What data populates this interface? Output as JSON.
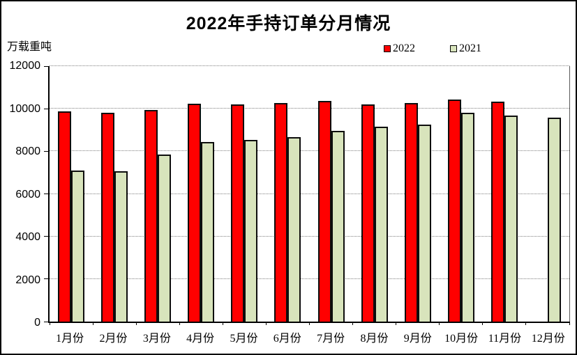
{
  "header": {
    "title": "2022年手持订单分月情况"
  },
  "axes": {
    "unit_label": "万载重吨",
    "yticks": [
      0,
      2000,
      4000,
      6000,
      8000,
      10000,
      12000
    ]
  },
  "legend": {
    "items": [
      {
        "label": "2022",
        "color": "#ff0000"
      },
      {
        "label": "2021",
        "color": "#d8e4bc"
      }
    ]
  },
  "chart_data": {
    "type": "bar",
    "title": "2022年手持订单分月情况",
    "ylabel": "万载重吨",
    "xlabel": "",
    "categories": [
      "1月份",
      "2月份",
      "3月份",
      "4月份",
      "5月份",
      "6月份",
      "7月份",
      "8月份",
      "9月份",
      "10月份",
      "11月份",
      "12月份"
    ],
    "series": [
      {
        "name": "2022",
        "color": "#ff0000",
        "values": [
          9868,
          9798,
          9935,
          10247,
          10204,
          10274,
          10366,
          10206,
          10260,
          10441,
          10341,
          null
        ]
      },
      {
        "name": "2021",
        "color": "#d8e4bc",
        "values": [
          7111,
          7064,
          7858,
          8439,
          8523,
          8660,
          8967,
          9147,
          9244,
          9810,
          9666,
          9584
        ]
      }
    ],
    "ylim": [
      0,
      12000
    ],
    "ytick_step": 2000,
    "grid": "horizontal-dotted",
    "legend_position": "top-right"
  }
}
